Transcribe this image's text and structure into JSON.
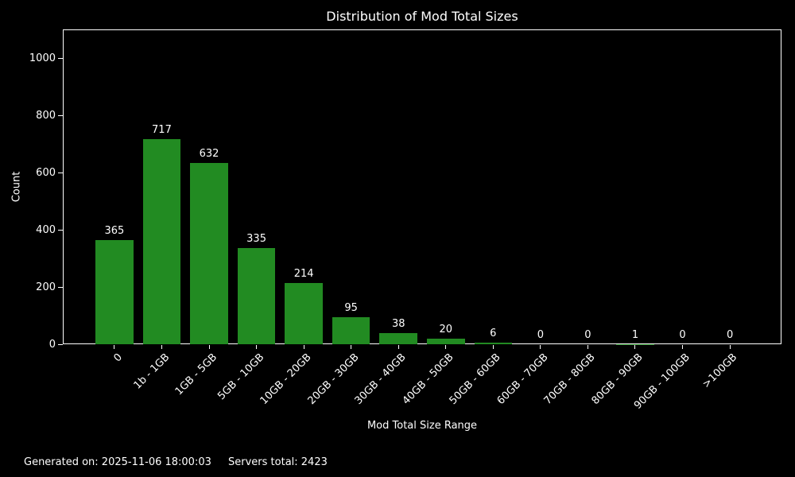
{
  "title": "Distribution of Mod Total Sizes",
  "axes": {
    "xlabel": "Mod Total Size Range",
    "ylabel": "Count"
  },
  "footer": {
    "generated": "Generated on: 2025-11-06 18:00:03",
    "servers_total": "Servers total: 2423"
  },
  "colors": {
    "background": "#000000",
    "bar": "#228B22",
    "text": "#ffffff",
    "spine": "#ffffff"
  },
  "chart_data": {
    "type": "bar",
    "title": "Distribution of Mod Total Sizes",
    "xlabel": "Mod Total Size Range",
    "ylabel": "Count",
    "categories": [
      "0",
      "1b - 1GB",
      "1GB - 5GB",
      "5GB - 10GB",
      "10GB - 20GB",
      "20GB - 30GB",
      "30GB - 40GB",
      "40GB - 50GB",
      "50GB - 60GB",
      "60GB - 70GB",
      "70GB - 80GB",
      "80GB - 90GB",
      "90GB - 100GB",
      ">100GB"
    ],
    "values": [
      365,
      717,
      632,
      335,
      214,
      95,
      38,
      20,
      6,
      0,
      0,
      1,
      0,
      0
    ],
    "value_labels": [
      365,
      717,
      632,
      335,
      214,
      95,
      38,
      20,
      6,
      0,
      0,
      1,
      0,
      0
    ],
    "yticks": [
      0,
      200,
      400,
      600,
      800,
      1000
    ],
    "ylim": [
      0,
      1100
    ],
    "bar_width_fraction": 0.8,
    "bar_color": "#228B22",
    "grid": false,
    "legend": null,
    "xtick_rotation": 45
  }
}
